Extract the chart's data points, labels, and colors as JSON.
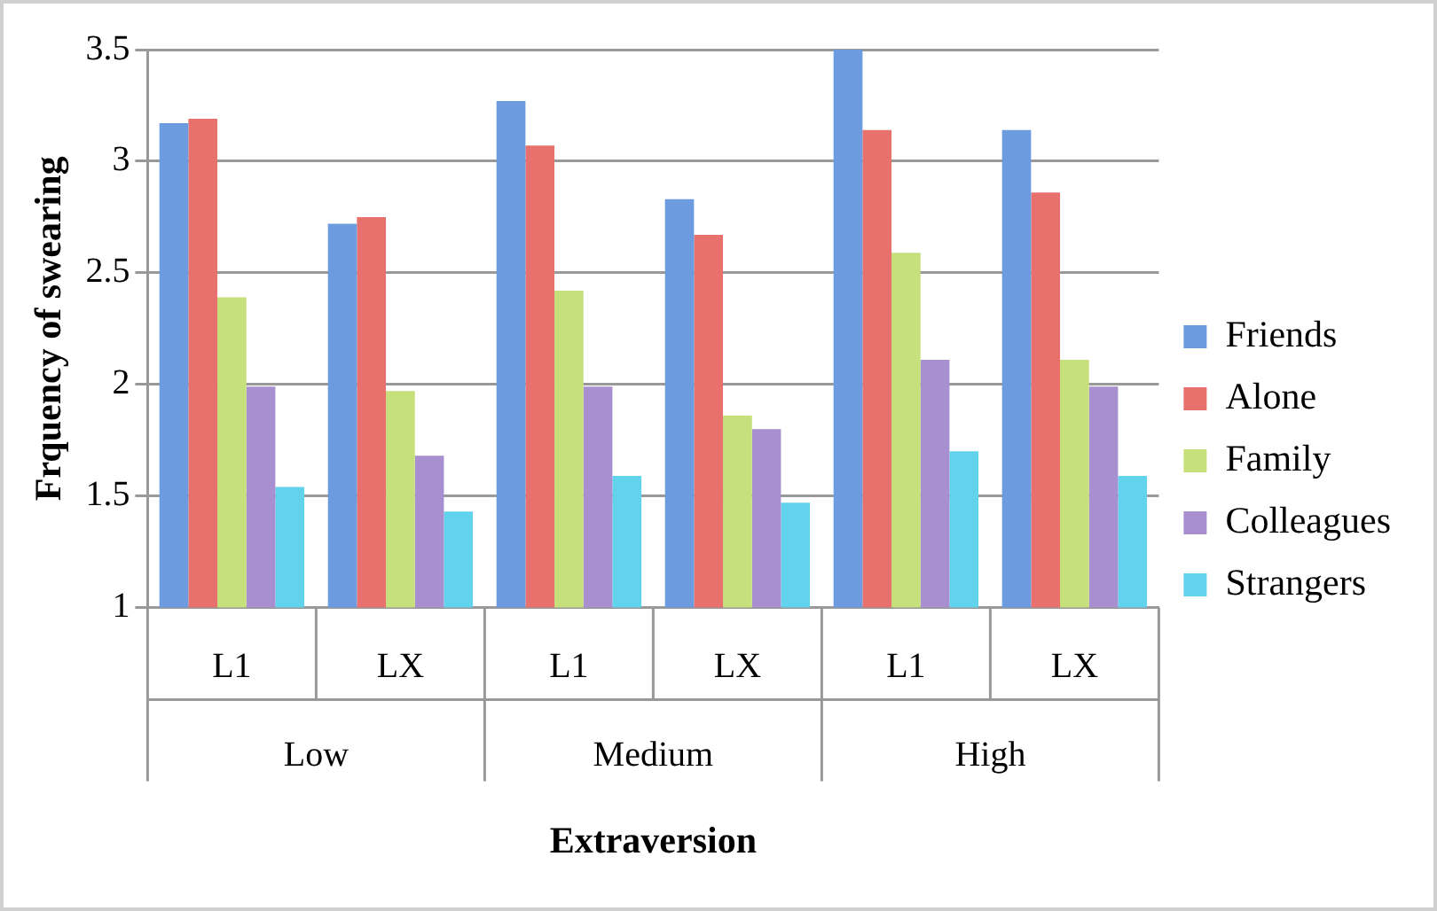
{
  "chart_data": {
    "type": "bar",
    "xlabel": "Extraversion",
    "ylabel": "Frquency of swearing",
    "categories": [
      "L1",
      "LX",
      "L1",
      "LX",
      "L1",
      "LX"
    ],
    "annotations": [
      "Low",
      "Medium",
      "High"
    ],
    "series": [
      {
        "name": "Friends",
        "color": "#6d9be0",
        "values": [
          3.17,
          2.72,
          3.27,
          2.83,
          3.5,
          3.14
        ]
      },
      {
        "name": "Alone",
        "color": "#e8706d",
        "values": [
          3.19,
          2.75,
          3.07,
          2.67,
          3.14,
          2.86
        ]
      },
      {
        "name": "Family",
        "color": "#c6e07c",
        "values": [
          2.39,
          1.97,
          2.42,
          1.86,
          2.59,
          2.11
        ]
      },
      {
        "name": "Colleagues",
        "color": "#a88fd0",
        "values": [
          1.99,
          1.68,
          1.99,
          1.8,
          2.11,
          1.99
        ]
      },
      {
        "name": "Strangers",
        "color": "#62d3ec",
        "values": [
          1.54,
          1.43,
          1.59,
          1.47,
          1.7,
          1.59
        ]
      }
    ],
    "ylim": [
      1,
      3.5
    ],
    "yticks": [
      1,
      1.5,
      2,
      2.5,
      3,
      3.5
    ],
    "grid": "y",
    "legend": "right"
  }
}
